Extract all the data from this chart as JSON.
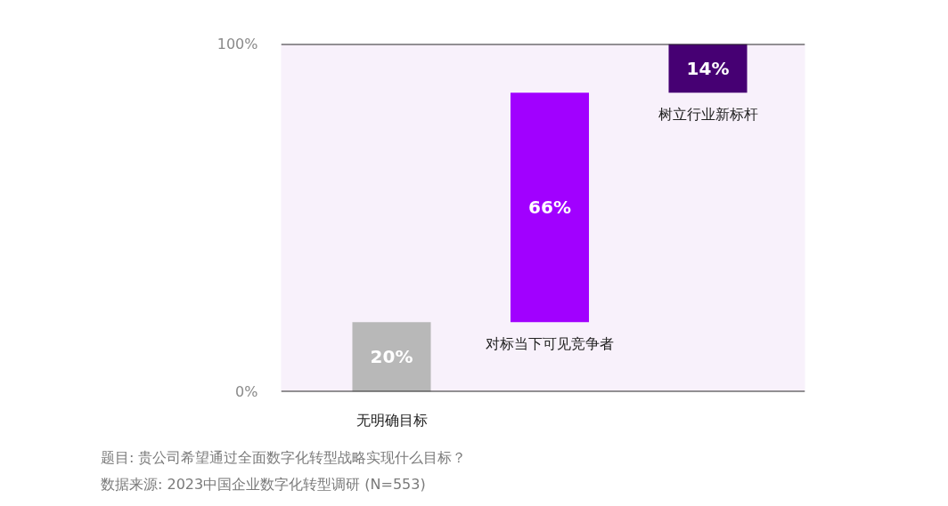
{
  "chart_data": {
    "type": "bar",
    "categories": [
      "无明确目标",
      "对标当下可见竞争者",
      "树立行业新标杆"
    ],
    "values": [
      20,
      66,
      14
    ],
    "base": [
      0,
      20,
      86
    ],
    "colors": [
      "#b8b8b8",
      "#a100ff",
      "#460073"
    ],
    "value_labels": [
      "20%",
      "66%",
      "14%"
    ],
    "ylim": [
      0,
      100
    ],
    "yticks": [
      {
        "value": 0,
        "label": "0%"
      },
      {
        "value": 100,
        "label": "100%"
      }
    ],
    "grid": "y",
    "annotations": [
      "题目: 贵公司希望通过全面数字化转型战略实现什么目标？",
      "数据来源: 2023中国企业数字化转型调研 (N=553)"
    ]
  }
}
